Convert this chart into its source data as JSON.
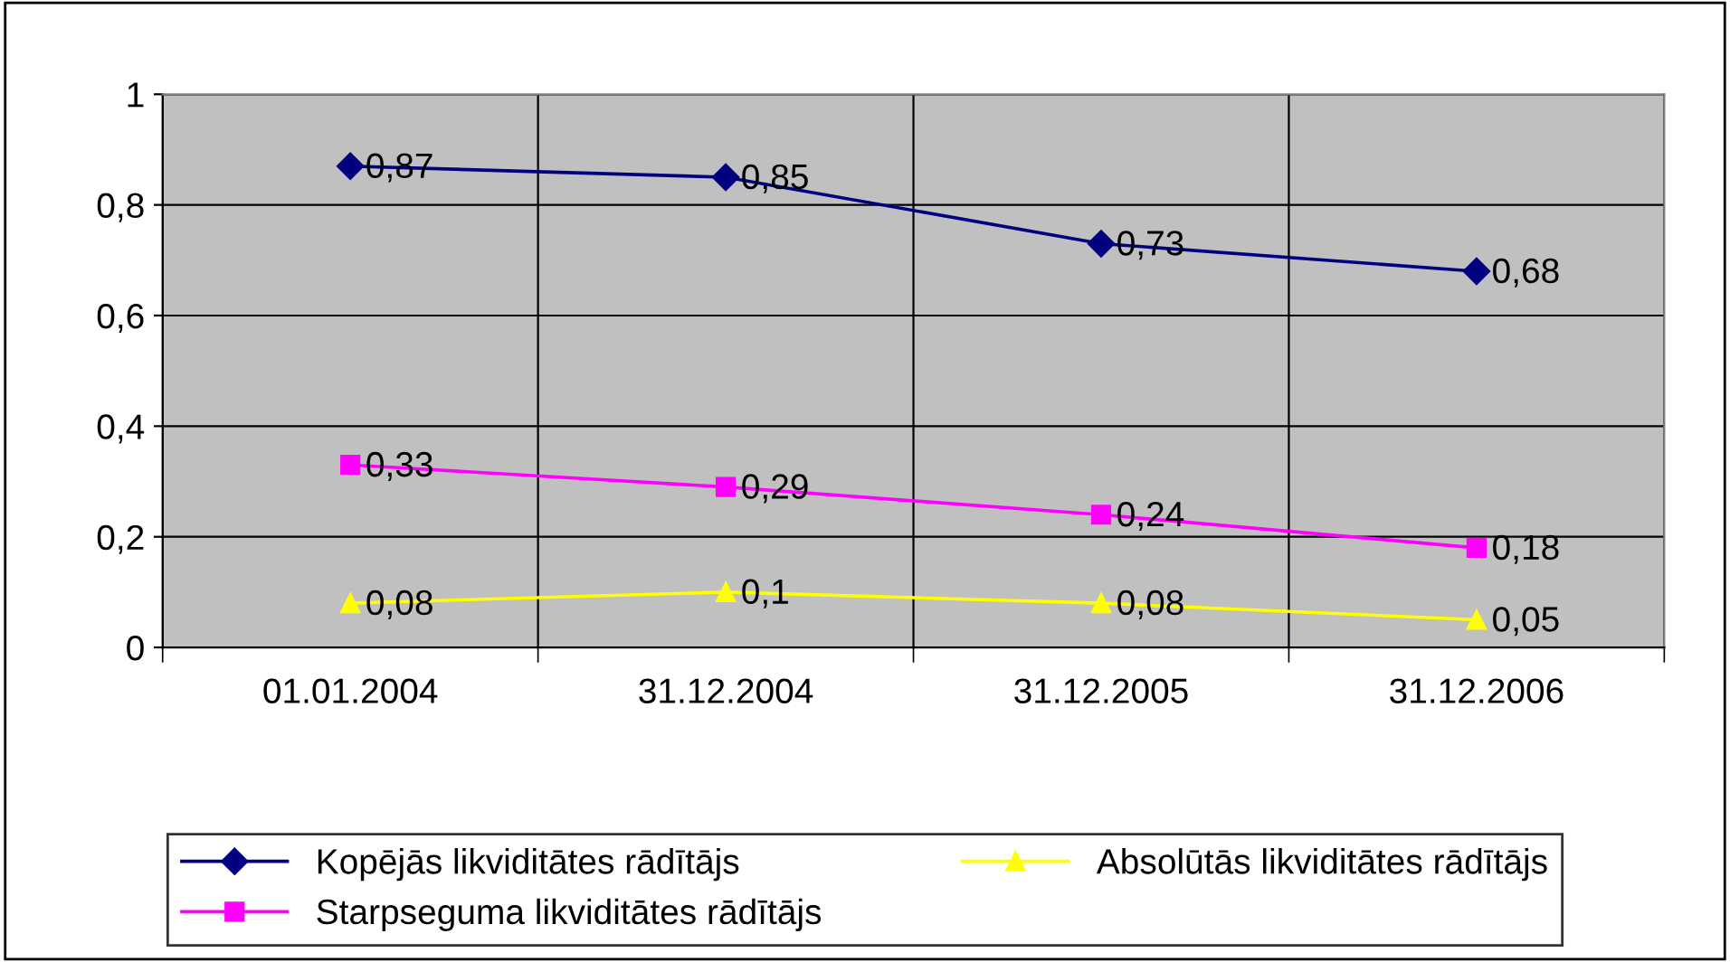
{
  "chart_data": {
    "type": "line",
    "categories": [
      "01.01.2004",
      "31.12.2004",
      "31.12.2005",
      "31.12.2006"
    ],
    "series": [
      {
        "name": "Kopējās likviditātes rādītājs",
        "color": "#000080",
        "marker": "diamond",
        "values": [
          0.87,
          0.85,
          0.73,
          0.68
        ],
        "value_labels": [
          "0,87",
          "0,85",
          "0,73",
          "0,68"
        ]
      },
      {
        "name": "Starpseguma likviditātes rādītājs",
        "color": "#ff00ff",
        "marker": "square",
        "values": [
          0.33,
          0.29,
          0.24,
          0.18
        ],
        "value_labels": [
          "0,33",
          "0,29",
          "0,24",
          "0,18"
        ]
      },
      {
        "name": "Absolūtās likviditātes rādītājs",
        "color": "#ffff00",
        "marker": "triangle",
        "values": [
          0.08,
          0.1,
          0.08,
          0.05
        ],
        "value_labels": [
          "0,08",
          "0,1",
          "0,08",
          "0,05"
        ]
      }
    ],
    "ylim": [
      0,
      1
    ],
    "yticks": [
      0,
      {
        "value": 0.2,
        "label": "0,2"
      },
      {
        "value": 0.4,
        "label": "0,4"
      },
      {
        "value": 0.6,
        "label": "0,6"
      },
      {
        "value": 0.8,
        "label": "0,8"
      },
      1
    ],
    "grid": true,
    "legend": "bottom",
    "line_style": "solid"
  }
}
